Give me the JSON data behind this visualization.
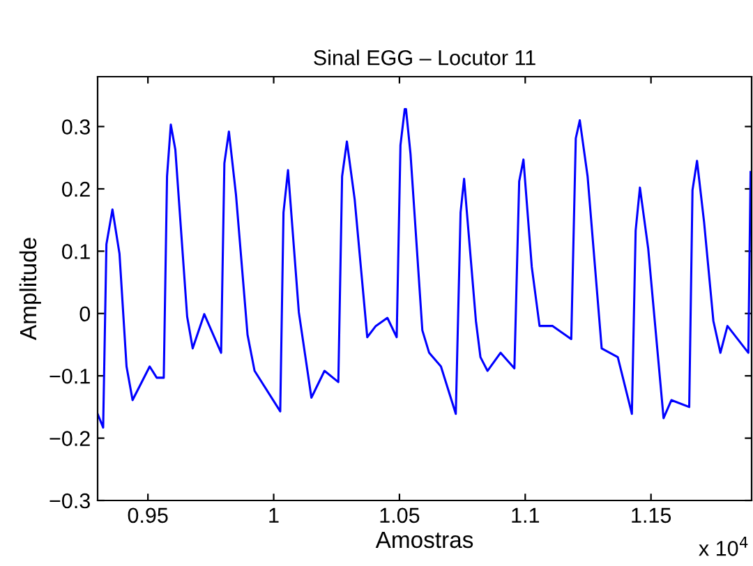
{
  "chart_data": {
    "type": "line",
    "title": "Sinal EGG – Locutor 11",
    "xlabel": "Amostras",
    "ylabel": "Amplitude",
    "annotations": [
      "x 10$^{4}$"
    ],
    "xlim": [
      0.93,
      1.19
    ],
    "xticks": [
      0.95,
      1,
      1.05,
      1.1,
      1.15
    ],
    "ylim": [
      -0.3,
      0.38
    ],
    "yticks": [
      {
        "value": -0.3,
        "label": "−0.3"
      },
      {
        "value": -0.2,
        "label": "−0.2"
      },
      {
        "value": -0.1,
        "label": "−0.1"
      },
      0,
      0.1,
      0.2,
      0.3
    ],
    "grid": false,
    "series": [
      {
        "color": "#0000ff",
        "x": [
          0.93,
          0.9322,
          0.9335,
          0.9359,
          0.9387,
          0.9415,
          0.9439,
          0.9507,
          0.9535,
          0.9563,
          0.9576,
          0.9591,
          0.9609,
          0.9656,
          0.9678,
          0.9724,
          0.9791,
          0.9804,
          0.9822,
          0.985,
          0.9896,
          0.9924,
          1.0026,
          1.0039,
          1.0057,
          1.01,
          1.015,
          1.0202,
          1.0257,
          1.0272,
          1.0291,
          1.0322,
          1.0372,
          1.0406,
          1.0452,
          1.0489,
          1.0504,
          1.0521,
          1.0526,
          1.0544,
          1.0591,
          1.0618,
          1.0665,
          1.0724,
          1.0743,
          1.0757,
          1.0804,
          1.0822,
          1.085,
          1.0902,
          1.0957,
          1.0976,
          1.0993,
          1.1026,
          1.1057,
          1.1109,
          1.1183,
          1.1201,
          1.1217,
          1.1248,
          1.1304,
          1.1368,
          1.1424,
          1.1439,
          1.1456,
          1.1489,
          1.155,
          1.1581,
          1.1652,
          1.1665,
          1.1683,
          1.1711,
          1.1748,
          1.1776,
          1.1804,
          1.1887,
          1.1896
        ],
        "values": [
          -0.161,
          -0.183,
          0.111,
          0.167,
          0.096,
          -0.085,
          -0.139,
          -0.085,
          -0.103,
          -0.103,
          0.22,
          0.303,
          0.263,
          -0.005,
          -0.056,
          -0.001,
          -0.063,
          0.241,
          0.292,
          0.191,
          -0.034,
          -0.092,
          -0.157,
          0.162,
          0.23,
          0.002,
          -0.135,
          -0.092,
          -0.11,
          0.22,
          0.276,
          0.183,
          -0.038,
          -0.02,
          -0.007,
          -0.038,
          0.27,
          0.328,
          0.328,
          0.256,
          -0.027,
          -0.063,
          -0.085,
          -0.161,
          0.162,
          0.216,
          -0.012,
          -0.07,
          -0.092,
          -0.063,
          -0.088,
          0.212,
          0.247,
          0.075,
          -0.02,
          -0.02,
          -0.041,
          0.281,
          0.31,
          0.22,
          -0.056,
          -0.07,
          -0.161,
          0.133,
          0.202,
          0.104,
          -0.168,
          -0.139,
          -0.15,
          0.198,
          0.245,
          0.147,
          -0.012,
          -0.063,
          -0.02,
          -0.063,
          0.227
        ]
      }
    ]
  }
}
